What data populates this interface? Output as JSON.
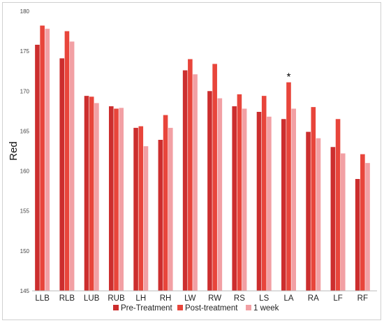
{
  "chart_data": {
    "type": "bar",
    "title": "",
    "xlabel": "",
    "ylabel": "Red",
    "ylim": [
      145,
      180
    ],
    "yticks": [
      145,
      150,
      155,
      160,
      165,
      170,
      175,
      180
    ],
    "grid": false,
    "legend_position": "bottom",
    "categories": [
      "LLB",
      "RLB",
      "LUB",
      "RUB",
      "LH",
      "RH",
      "LW",
      "RW",
      "RS",
      "LS",
      "LA",
      "RA",
      "LF",
      "RF"
    ],
    "series": [
      {
        "name": "Pre-Treatment",
        "color": "#cc2e2e",
        "values": [
          175.8,
          174.1,
          169.4,
          168.1,
          165.4,
          163.9,
          172.6,
          170.0,
          168.1,
          167.4,
          166.5,
          164.9,
          163.0,
          159.0
        ]
      },
      {
        "name": "Post-treatment",
        "color": "#e8453b",
        "values": [
          178.2,
          177.5,
          169.3,
          167.8,
          165.6,
          167.0,
          174.0,
          173.4,
          169.6,
          169.4,
          171.1,
          168.0,
          166.5,
          162.1
        ]
      },
      {
        "name": "1 week",
        "color": "#f2a0a4",
        "values": [
          177.8,
          176.2,
          168.5,
          167.9,
          163.1,
          165.4,
          172.1,
          169.1,
          167.8,
          166.8,
          167.8,
          164.1,
          162.2,
          161.0
        ]
      }
    ],
    "annotations": [
      {
        "category": "LA",
        "series": "Post-treatment",
        "text": "*"
      }
    ]
  }
}
